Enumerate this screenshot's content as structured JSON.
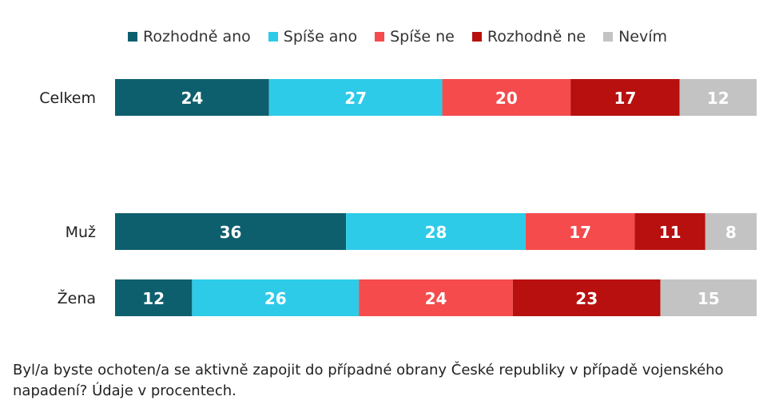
{
  "chart_data": {
    "type": "bar",
    "orientation": "horizontal",
    "stacked": true,
    "categories": [
      "Celkem",
      "Muž",
      "Žena"
    ],
    "series": [
      {
        "name": "Rozhodně ano",
        "color": "#0e5f6e",
        "values": [
          24,
          36,
          12
        ]
      },
      {
        "name": "Spíše ano",
        "color": "#2ecbe8",
        "values": [
          27,
          28,
          26
        ]
      },
      {
        "name": "Spíše ne",
        "color": "#f54b4d",
        "values": [
          20,
          17,
          24
        ]
      },
      {
        "name": "Rozhodně ne",
        "color": "#b8100f",
        "values": [
          17,
          11,
          23
        ]
      },
      {
        "name": "Nevím",
        "color": "#c3c3c3",
        "values": [
          12,
          8,
          15
        ]
      }
    ],
    "xlim": [
      0,
      100
    ],
    "grid": false,
    "legend_position": "top",
    "caption": "Byl/a byste ochoten/a se aktivně zapojit do případné obrany České republiky v případě vojenského napadení? Údaje v procentech."
  }
}
